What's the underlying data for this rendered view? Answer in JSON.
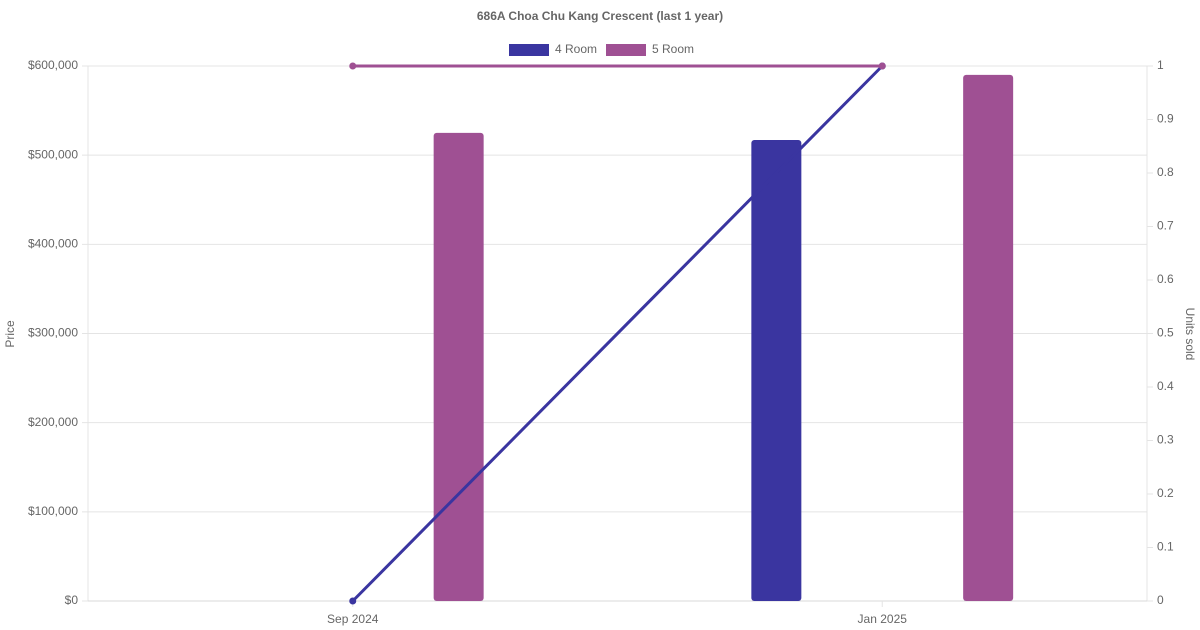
{
  "chart_data": {
    "type": "bar-line",
    "title": "686A Choa Chu Kang Crescent (last 1 year)",
    "y_label": "Price",
    "y2_label": "Units sold",
    "categories": [
      "Sep 2024",
      "Jan 2025"
    ],
    "series": [
      {
        "name": "4 Room",
        "type": "bar",
        "color": "#3a35a0",
        "values": [
          null,
          517000
        ]
      },
      {
        "name": "5 Room",
        "type": "bar",
        "color": "#9f5093",
        "values": [
          525000,
          590000
        ]
      },
      {
        "type": "line",
        "axis": "y2",
        "color": "#3a35a0",
        "values": [
          0,
          1
        ]
      },
      {
        "type": "line",
        "axis": "y2",
        "color": "#9f5093",
        "values": [
          1,
          1
        ]
      }
    ],
    "ylim": [
      0,
      600000
    ],
    "yticks": [
      {
        "value": 0,
        "label": "$0"
      },
      {
        "value": 100000,
        "label": "$100,000"
      },
      {
        "value": 200000,
        "label": "$200,000"
      },
      {
        "value": 300000,
        "label": "$300,000"
      },
      {
        "value": 400000,
        "label": "$400,000"
      },
      {
        "value": 500000,
        "label": "$500,000"
      },
      {
        "value": 600000,
        "label": "$600,000"
      }
    ],
    "y2lim": [
      0,
      1
    ],
    "y2ticks": [
      0,
      0.1,
      0.2,
      0.3,
      0.4,
      0.5,
      0.6,
      0.7,
      0.8,
      0.9,
      1
    ],
    "grid": true,
    "legend": "top"
  }
}
